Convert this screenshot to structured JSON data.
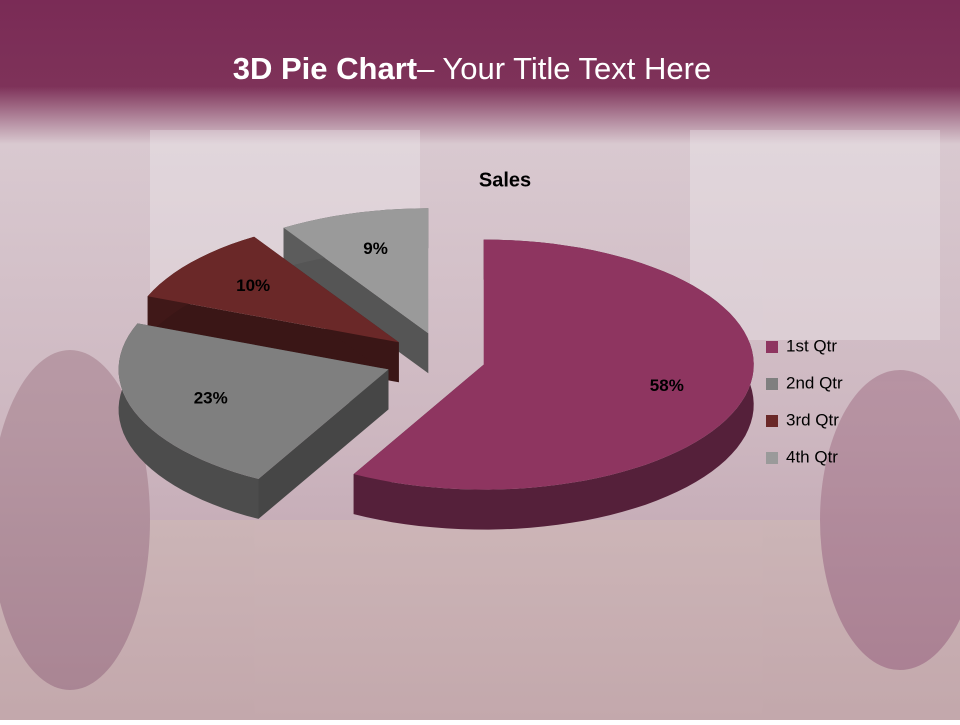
{
  "slide": {
    "title_bold": "3D Pie Chart",
    "title_rest": "– Your Title Text Here"
  },
  "chart_data": {
    "type": "pie",
    "title": "Sales",
    "categories": [
      "1st Qtr",
      "2nd Qtr",
      "3rd Qtr",
      "4th Qtr"
    ],
    "values": [
      58,
      23,
      10,
      9
    ],
    "value_labels": [
      "58%",
      "23%",
      "10%",
      "9%"
    ],
    "colors": [
      "#8e3560",
      "#7f7f7f",
      "#6a2828",
      "#9a9a9a"
    ],
    "legend": "right"
  }
}
